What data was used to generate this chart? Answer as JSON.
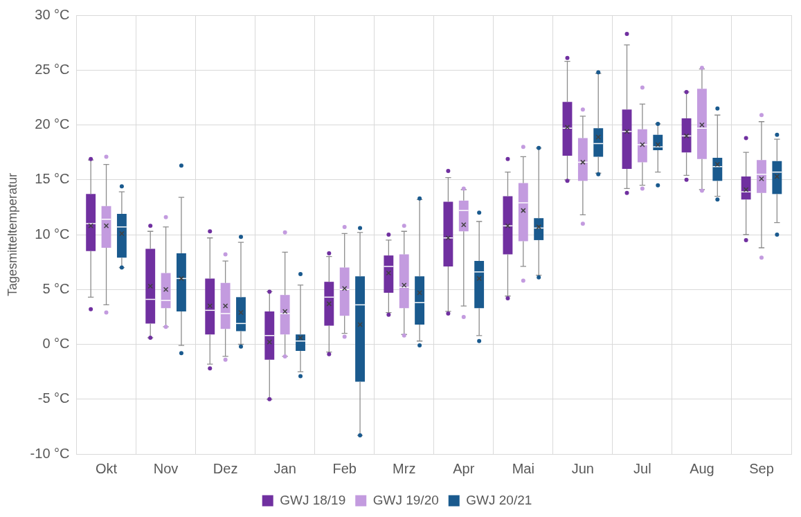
{
  "chart_data": {
    "type": "box",
    "ylabel": "Tagesmitteltemperatur",
    "categories": [
      "Okt",
      "Nov",
      "Dez",
      "Jan",
      "Feb",
      "Mrz",
      "Apr",
      "Mai",
      "Jun",
      "Jul",
      "Aug",
      "Sep"
    ],
    "ylim": [
      -10,
      30
    ],
    "yticks": [
      {
        "value": -10,
        "label": "-10 °C"
      },
      {
        "value": -5,
        "label": "-5 °C"
      },
      {
        "value": 0,
        "label": "0 °C"
      },
      {
        "value": 5,
        "label": "5 °C"
      },
      {
        "value": 10,
        "label": "10 °C"
      },
      {
        "value": 15,
        "label": "15 °C"
      },
      {
        "value": 20,
        "label": "20 °C"
      },
      {
        "value": 25,
        "label": "25 °C"
      },
      {
        "value": 30,
        "label": "30 °C"
      }
    ],
    "grid": true,
    "legend": "bottom",
    "series": [
      {
        "name": "GWJ 18/19",
        "color": "#7030a0",
        "boxes": [
          {
            "low": 4.3,
            "q1": 8.5,
            "median": 11.0,
            "q3": 13.7,
            "high": 16.8,
            "mean": 10.8,
            "outliers": [
              16.9,
              3.2
            ]
          },
          {
            "low": 0.6,
            "q1": 1.9,
            "median": 4.1,
            "q3": 8.7,
            "high": 10.3,
            "mean": 5.3,
            "outliers": [
              10.8,
              0.6
            ]
          },
          {
            "low": -1.8,
            "q1": 0.9,
            "median": 3.1,
            "q3": 6.0,
            "high": 9.7,
            "mean": 3.5,
            "outliers": [
              10.3,
              -2.2
            ]
          },
          {
            "low": -5.0,
            "q1": -1.4,
            "median": 0.8,
            "q3": 3.0,
            "high": 4.8,
            "mean": 0.2,
            "outliers": [
              4.8,
              -5.0
            ]
          },
          {
            "low": -0.7,
            "q1": 1.7,
            "median": 4.3,
            "q3": 5.7,
            "high": 8.0,
            "mean": 3.7,
            "outliers": [
              8.3,
              -0.9
            ]
          },
          {
            "low": 2.9,
            "q1": 4.7,
            "median": 7.1,
            "q3": 8.1,
            "high": 9.5,
            "mean": 6.5,
            "outliers": [
              10.0,
              2.7
            ]
          },
          {
            "low": 3.0,
            "q1": 7.1,
            "median": 9.7,
            "q3": 13.0,
            "high": 15.2,
            "mean": 9.7,
            "outliers": [
              15.8,
              2.8
            ]
          },
          {
            "low": 4.4,
            "q1": 8.2,
            "median": 10.8,
            "q3": 13.5,
            "high": 15.7,
            "mean": 10.8,
            "outliers": [
              16.9,
              4.2
            ]
          },
          {
            "low": 15.0,
            "q1": 17.2,
            "median": 19.7,
            "q3": 22.1,
            "high": 25.8,
            "mean": 19.8,
            "outliers": [
              26.1,
              14.9
            ]
          },
          {
            "low": 14.2,
            "q1": 16.0,
            "median": 19.4,
            "q3": 21.4,
            "high": 27.3,
            "mean": 19.4,
            "outliers": [
              28.3,
              13.8
            ]
          },
          {
            "low": 15.4,
            "q1": 17.5,
            "median": 19.0,
            "q3": 20.6,
            "high": 23.0,
            "mean": 19.0,
            "outliers": [
              23.0,
              15.0
            ]
          },
          {
            "low": 10.0,
            "q1": 13.2,
            "median": 13.9,
            "q3": 15.3,
            "high": 17.5,
            "mean": 14.1,
            "outliers": [
              18.8,
              9.5
            ]
          }
        ]
      },
      {
        "name": "GWJ 19/20",
        "color": "#c39bdf",
        "boxes": [
          {
            "low": 3.6,
            "q1": 8.8,
            "median": 11.4,
            "q3": 12.6,
            "high": 16.4,
            "mean": 10.8,
            "outliers": [
              17.1,
              2.9
            ]
          },
          {
            "low": 1.6,
            "q1": 3.3,
            "median": 4.0,
            "q3": 6.5,
            "high": 10.7,
            "mean": 5.0,
            "outliers": [
              11.6,
              1.6
            ]
          },
          {
            "low": -1.1,
            "q1": 1.4,
            "median": 2.8,
            "q3": 5.6,
            "high": 7.6,
            "mean": 3.5,
            "outliers": [
              8.2,
              -1.4
            ]
          },
          {
            "low": -1.1,
            "q1": 0.9,
            "median": 2.8,
            "q3": 4.5,
            "high": 8.4,
            "mean": 3.0,
            "outliers": [
              10.2,
              -1.1
            ]
          },
          {
            "low": 1.0,
            "q1": 2.6,
            "median": 5.0,
            "q3": 7.0,
            "high": 10.1,
            "mean": 5.1,
            "outliers": [
              10.7,
              0.7
            ]
          },
          {
            "low": 0.9,
            "q1": 3.3,
            "median": 5.2,
            "q3": 8.2,
            "high": 10.3,
            "mean": 5.4,
            "outliers": [
              10.8,
              0.8
            ]
          },
          {
            "low": 3.5,
            "q1": 10.3,
            "median": 12.2,
            "q3": 13.1,
            "high": 14.1,
            "mean": 10.9,
            "outliers": [
              14.2,
              2.5
            ]
          },
          {
            "low": 7.1,
            "q1": 9.4,
            "median": 12.9,
            "q3": 14.7,
            "high": 17.1,
            "mean": 12.2,
            "outliers": [
              18.0,
              5.8
            ]
          },
          {
            "low": 11.8,
            "q1": 14.9,
            "median": 16.6,
            "q3": 18.8,
            "high": 20.8,
            "mean": 16.6,
            "outliers": [
              21.4,
              11.0
            ]
          },
          {
            "low": 14.5,
            "q1": 16.6,
            "median": 18.2,
            "q3": 19.6,
            "high": 21.9,
            "mean": 18.2,
            "outliers": [
              23.4,
              14.2
            ]
          },
          {
            "low": 14.1,
            "q1": 16.9,
            "median": 19.7,
            "q3": 23.3,
            "high": 25.1,
            "mean": 20.0,
            "outliers": [
              25.2,
              14.0
            ]
          },
          {
            "low": 8.8,
            "q1": 13.8,
            "median": 15.5,
            "q3": 16.8,
            "high": 20.3,
            "mean": 15.1,
            "outliers": [
              20.9,
              7.9
            ]
          }
        ]
      },
      {
        "name": "GWJ 20/21",
        "color": "#1a5a8e",
        "boxes": [
          {
            "low": 7.0,
            "q1": 7.9,
            "median": 10.7,
            "q3": 11.9,
            "high": 13.9,
            "mean": 10.1,
            "outliers": [
              14.4,
              7.0
            ]
          },
          {
            "low": -0.1,
            "q1": 3.0,
            "median": 6.0,
            "q3": 8.3,
            "high": 13.4,
            "mean": 6.0,
            "outliers": [
              16.3,
              -0.8
            ]
          },
          {
            "low": 0.0,
            "q1": 1.2,
            "median": 1.9,
            "q3": 4.3,
            "high": 9.3,
            "mean": 2.9,
            "outliers": [
              9.8,
              -0.2
            ]
          },
          {
            "low": -2.5,
            "q1": -0.6,
            "median": 0.3,
            "q3": 0.9,
            "high": 5.4,
            "mean": 0.6,
            "outliers": [
              6.4,
              -2.9
            ]
          },
          {
            "low": -8.3,
            "q1": -3.4,
            "median": 3.6,
            "q3": 6.2,
            "high": 10.2,
            "mean": 1.8,
            "outliers": [
              10.6,
              -8.3
            ]
          },
          {
            "low": 0.3,
            "q1": 1.8,
            "median": 3.8,
            "q3": 6.2,
            "high": 13.2,
            "mean": 4.7,
            "outliers": [
              13.3,
              -0.1
            ]
          },
          {
            "low": 0.8,
            "q1": 3.3,
            "median": 6.6,
            "q3": 7.6,
            "high": 11.2,
            "mean": 6.0,
            "outliers": [
              12.0,
              0.3
            ]
          },
          {
            "low": 6.3,
            "q1": 9.5,
            "median": 10.6,
            "q3": 11.5,
            "high": 17.9,
            "mean": 10.7,
            "outliers": [
              17.9,
              6.1
            ]
          },
          {
            "low": 15.6,
            "q1": 17.1,
            "median": 18.3,
            "q3": 19.7,
            "high": 24.7,
            "mean": 18.9,
            "outliers": [
              24.8,
              15.5
            ]
          },
          {
            "low": 15.7,
            "q1": 17.7,
            "median": 18.0,
            "q3": 19.1,
            "high": 20.1,
            "mean": 18.2,
            "outliers": [
              20.1,
              14.5
            ]
          },
          {
            "low": 13.5,
            "q1": 14.9,
            "median": 16.2,
            "q3": 17.0,
            "high": 20.9,
            "mean": 16.4,
            "outliers": [
              21.5,
              13.2
            ]
          },
          {
            "low": 11.1,
            "q1": 13.7,
            "median": 15.7,
            "q3": 16.7,
            "high": 18.7,
            "mean": 15.3,
            "outliers": [
              19.1,
              10.0
            ]
          }
        ]
      }
    ]
  }
}
